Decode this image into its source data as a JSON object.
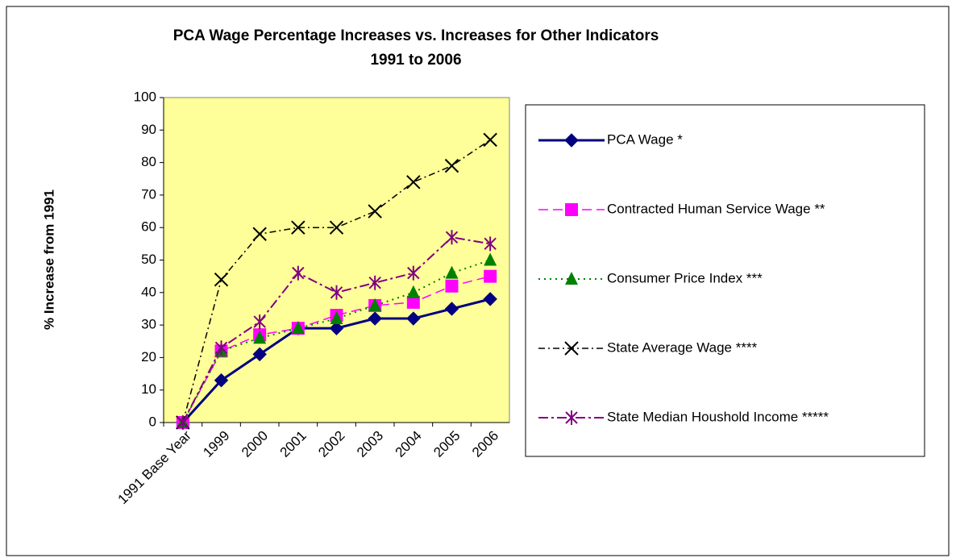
{
  "chart_data": {
    "type": "line",
    "title": "PCA Wage Percentage Increases vs. Increases for Other Indicators",
    "subtitle": "1991 to 2006",
    "y_label": "% Increase from 1991",
    "categories": [
      "1991 Base Year",
      "1999",
      "2000",
      "2001",
      "2002",
      "2003",
      "2004",
      "2005",
      "2006"
    ],
    "series": [
      {
        "name": "PCA Wage *",
        "color": "#000080",
        "values": [
          0,
          13,
          21,
          29,
          29,
          32,
          32,
          35,
          38
        ]
      },
      {
        "name": "Contracted Human Service Wage **",
        "color": "#ff00ff",
        "values": [
          0,
          22,
          27,
          29,
          33,
          36,
          37,
          42,
          45
        ]
      },
      {
        "name": "Consumer Price Index ***",
        "color": "#008000",
        "values": [
          0,
          22,
          26,
          29,
          32,
          36,
          40,
          46,
          50
        ]
      },
      {
        "name": "State Average Wage ****",
        "color": "#000000",
        "values": [
          0,
          44,
          58,
          60,
          60,
          65,
          74,
          79,
          87
        ]
      },
      {
        "name": "State Median Houshold Income *****",
        "color": "#800080",
        "values": [
          0,
          23,
          31,
          46,
          40,
          43,
          46,
          57,
          55
        ]
      }
    ],
    "ylim": [
      0,
      100
    ],
    "yticks": [
      0,
      10,
      20,
      30,
      40,
      50,
      60,
      70,
      80,
      90,
      100
    ],
    "grid": false,
    "legend": "right"
  }
}
